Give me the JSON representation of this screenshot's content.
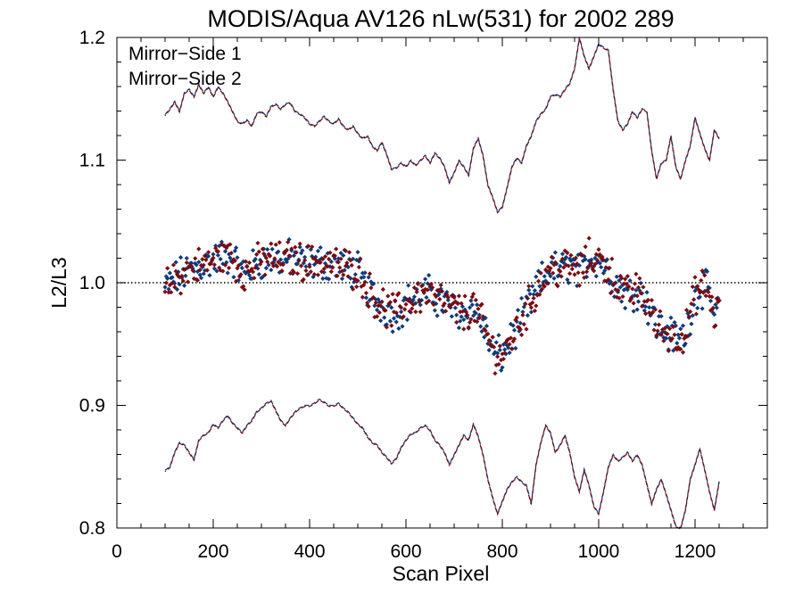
{
  "chart_data": {
    "type": "scatter",
    "title": "MODIS/Aqua AV126 nLw(531) for 2002 289",
    "xlabel": "Scan Pixel",
    "ylabel": "L2/L3",
    "xlim": [
      0,
      1350
    ],
    "ylim": [
      0.8,
      1.2
    ],
    "x_ticks": [
      0,
      200,
      400,
      600,
      800,
      1000,
      1200
    ],
    "y_ticks": [
      0.8,
      0.9,
      1.0,
      1.1,
      1.2
    ],
    "x_tick_labels": [
      "0",
      "200",
      "400",
      "600",
      "800",
      "1000",
      "1200"
    ],
    "y_tick_labels": [
      "0.8",
      "0.9",
      "1.0",
      "1.1",
      "1.2"
    ],
    "reference_line": {
      "y": 1.0,
      "style": "dotted"
    },
    "legend": {
      "placement": "top-left"
    },
    "series": [
      {
        "name": "Mirror−Side 1",
        "color": "#0d3b7a"
      },
      {
        "name": "Mirror−Side 2",
        "color": "#7a0c12"
      }
    ],
    "mean_curve": {
      "x": [
        100,
        120,
        140,
        160,
        180,
        200,
        220,
        240,
        260,
        280,
        300,
        320,
        340,
        360,
        380,
        400,
        420,
        440,
        460,
        480,
        500,
        520,
        540,
        560,
        580,
        600,
        620,
        640,
        660,
        680,
        700,
        720,
        740,
        760,
        780,
        800,
        820,
        840,
        860,
        880,
        900,
        920,
        940,
        960,
        980,
        1000,
        1020,
        1040,
        1060,
        1080,
        1100,
        1120,
        1140,
        1160,
        1180,
        1200,
        1220,
        1240,
        1250
      ],
      "y": [
        0.995,
        1.003,
        1.008,
        1.012,
        1.015,
        1.018,
        1.022,
        1.02,
        1.008,
        1.012,
        1.018,
        1.02,
        1.018,
        1.02,
        1.018,
        1.016,
        1.017,
        1.016,
        1.014,
        1.012,
        1.01,
        0.995,
        0.985,
        0.978,
        0.975,
        0.983,
        0.988,
        0.992,
        0.988,
        0.984,
        0.978,
        0.975,
        0.98,
        0.965,
        0.945,
        0.94,
        0.955,
        0.97,
        0.985,
        1.0,
        1.012,
        1.01,
        1.015,
        1.008,
        1.02,
        1.02,
        1.01,
        0.998,
        0.99,
        0.995,
        0.985,
        0.965,
        0.96,
        0.955,
        0.958,
        0.99,
        0.998,
        0.975,
        0.978
      ]
    },
    "upper_bound": {
      "x": [
        100,
        110,
        120,
        130,
        140,
        150,
        160,
        170,
        180,
        190,
        200,
        210,
        220,
        230,
        240,
        250,
        260,
        270,
        280,
        290,
        300,
        310,
        320,
        330,
        340,
        350,
        360,
        370,
        380,
        390,
        400,
        410,
        420,
        430,
        440,
        450,
        460,
        470,
        480,
        490,
        500,
        510,
        520,
        530,
        540,
        550,
        560,
        570,
        580,
        590,
        600,
        610,
        620,
        630,
        640,
        650,
        660,
        670,
        680,
        690,
        700,
        710,
        720,
        730,
        740,
        750,
        760,
        770,
        780,
        790,
        800,
        810,
        820,
        830,
        840,
        850,
        860,
        870,
        880,
        890,
        900,
        910,
        920,
        930,
        940,
        950,
        960,
        970,
        980,
        990,
        1000,
        1010,
        1020,
        1030,
        1040,
        1050,
        1060,
        1070,
        1080,
        1090,
        1100,
        1110,
        1120,
        1130,
        1140,
        1150,
        1160,
        1170,
        1180,
        1190,
        1200,
        1210,
        1220,
        1230,
        1240,
        1250
      ],
      "y": [
        1.137,
        1.142,
        1.148,
        1.14,
        1.155,
        1.158,
        1.152,
        1.162,
        1.155,
        1.16,
        1.152,
        1.16,
        1.155,
        1.148,
        1.14,
        1.132,
        1.13,
        1.133,
        1.128,
        1.138,
        1.14,
        1.136,
        1.144,
        1.146,
        1.142,
        1.146,
        1.147,
        1.14,
        1.138,
        1.135,
        1.13,
        1.128,
        1.132,
        1.136,
        1.132,
        1.13,
        1.134,
        1.128,
        1.125,
        1.128,
        1.122,
        1.118,
        1.12,
        1.112,
        1.108,
        1.115,
        1.105,
        1.093,
        1.094,
        1.098,
        1.095,
        1.1,
        1.096,
        1.1,
        1.104,
        1.098,
        1.106,
        1.102,
        1.095,
        1.082,
        1.09,
        1.1,
        1.095,
        1.088,
        1.11,
        1.118,
        1.104,
        1.08,
        1.07,
        1.058,
        1.062,
        1.078,
        1.095,
        1.102,
        1.098,
        1.112,
        1.12,
        1.132,
        1.138,
        1.142,
        1.152,
        1.154,
        1.152,
        1.158,
        1.163,
        1.175,
        1.2,
        1.185,
        1.175,
        1.185,
        1.195,
        1.192,
        1.19,
        1.158,
        1.132,
        1.125,
        1.13,
        1.14,
        1.135,
        1.142,
        1.14,
        1.108,
        1.085,
        1.098,
        1.1,
        1.12,
        1.095,
        1.085,
        1.1,
        1.112,
        1.135,
        1.122,
        1.11,
        1.1,
        1.125,
        1.118
      ]
    },
    "lower_bound": {
      "x": [
        100,
        110,
        120,
        130,
        140,
        150,
        160,
        170,
        180,
        190,
        200,
        210,
        220,
        230,
        240,
        250,
        260,
        270,
        280,
        290,
        300,
        310,
        320,
        330,
        340,
        350,
        360,
        370,
        380,
        390,
        400,
        410,
        420,
        430,
        440,
        450,
        460,
        470,
        480,
        490,
        500,
        510,
        520,
        530,
        540,
        550,
        560,
        570,
        580,
        590,
        600,
        610,
        620,
        630,
        640,
        650,
        660,
        670,
        680,
        690,
        700,
        710,
        720,
        730,
        740,
        750,
        760,
        770,
        780,
        790,
        800,
        810,
        820,
        830,
        840,
        850,
        860,
        870,
        880,
        890,
        900,
        910,
        920,
        930,
        940,
        950,
        960,
        970,
        980,
        990,
        1000,
        1010,
        1020,
        1030,
        1040,
        1050,
        1060,
        1070,
        1080,
        1090,
        1100,
        1110,
        1120,
        1130,
        1140,
        1150,
        1160,
        1170,
        1180,
        1190,
        1200,
        1210,
        1220,
        1230,
        1240,
        1250
      ],
      "y": [
        0.847,
        0.85,
        0.862,
        0.87,
        0.868,
        0.862,
        0.856,
        0.872,
        0.876,
        0.878,
        0.885,
        0.882,
        0.888,
        0.892,
        0.886,
        0.882,
        0.878,
        0.884,
        0.888,
        0.895,
        0.898,
        0.902,
        0.904,
        0.896,
        0.888,
        0.884,
        0.89,
        0.895,
        0.898,
        0.9,
        0.9,
        0.902,
        0.905,
        0.903,
        0.9,
        0.9,
        0.902,
        0.898,
        0.895,
        0.89,
        0.885,
        0.882,
        0.875,
        0.87,
        0.868,
        0.862,
        0.858,
        0.853,
        0.857,
        0.866,
        0.872,
        0.877,
        0.878,
        0.882,
        0.884,
        0.88,
        0.872,
        0.868,
        0.862,
        0.852,
        0.86,
        0.868,
        0.876,
        0.872,
        0.885,
        0.875,
        0.86,
        0.84,
        0.825,
        0.812,
        0.822,
        0.832,
        0.838,
        0.842,
        0.838,
        0.835,
        0.82,
        0.852,
        0.87,
        0.884,
        0.878,
        0.862,
        0.868,
        0.876,
        0.862,
        0.842,
        0.83,
        0.848,
        0.835,
        0.818,
        0.812,
        0.83,
        0.85,
        0.86,
        0.855,
        0.858,
        0.862,
        0.855,
        0.86,
        0.852,
        0.836,
        0.82,
        0.832,
        0.84,
        0.828,
        0.815,
        0.802,
        0.8,
        0.815,
        0.84,
        0.852,
        0.865,
        0.848,
        0.83,
        0.815,
        0.838
      ]
    }
  }
}
